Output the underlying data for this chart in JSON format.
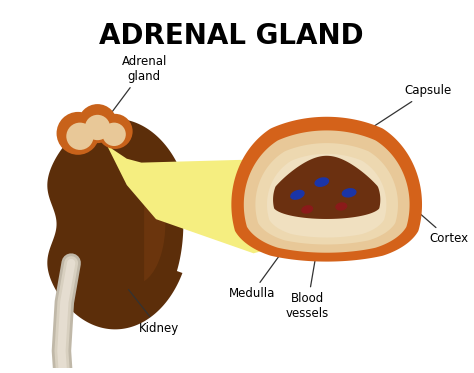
{
  "title": "ADRENAL GLAND",
  "title_fontsize": 20,
  "title_fontweight": "bold",
  "bg_color": "#ffffff",
  "labels": {
    "adrenal_gland": "Adrenal\ngland",
    "capsule": "Capsule",
    "cortex": "Cortex",
    "medulla": "Medulla",
    "blood_vessels": "Blood\nvessels",
    "kidney": "Kidney"
  },
  "colors": {
    "kidney_dark": "#5C2E0A",
    "kidney_gradient1": "#7A3D10",
    "kidney_gradient2": "#8B4513",
    "adrenal_orange": "#C8621A",
    "adrenal_orange2": "#D4782A",
    "adrenal_cream": "#E8C898",
    "adrenal_light": "#EDD8B0",
    "adrenal_lighter": "#F0E0C0",
    "adrenal_medulla": "#6B3010",
    "capsule_orange": "#D4621A",
    "yellow_fan": "#F5EE80",
    "yellow_fan2": "#F0E870",
    "white_hilum": "#D8D0C0",
    "white_tube": "#C8C0B0",
    "blue_vessel": "#1A35A8",
    "red_vessel": "#8B1A1A"
  }
}
